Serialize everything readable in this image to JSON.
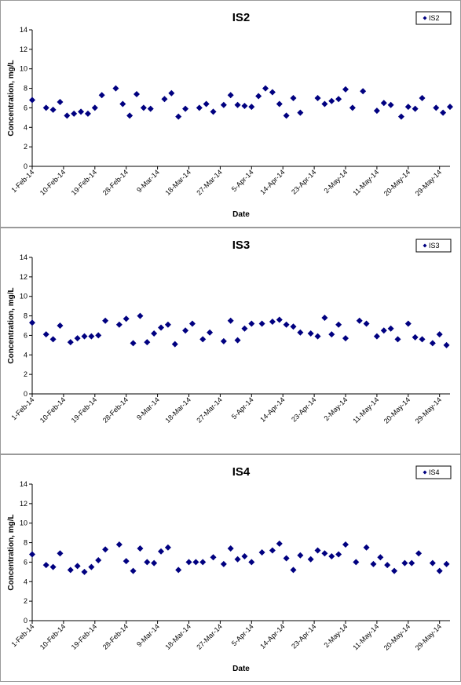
{
  "chart_data": [
    {
      "type": "scatter",
      "title": "IS2",
      "xlabel": "Date",
      "ylabel": "Concentration, mg/L",
      "legend": "top-right",
      "ylim": [
        0,
        14
      ],
      "yticks": [
        "0",
        "2",
        "4",
        "6",
        "8",
        "10",
        "12",
        "14"
      ],
      "xlim": [
        "2014-02-01",
        "2014-06-01"
      ],
      "xtick_labels": [
        "1-Feb-14",
        "10-Feb-14",
        "19-Feb-14",
        "28-Feb-14",
        "9-Mar-14",
        "18-Mar-14",
        "27-Mar-14",
        "5-Apr-14",
        "14-Apr-14",
        "23-Apr-14",
        "2-May-14",
        "11-May-14",
        "20-May-14",
        "29-May-14"
      ],
      "xticks": [
        "2014-02-01",
        "2014-02-10",
        "2014-02-19",
        "2014-02-28",
        "2014-03-09",
        "2014-03-18",
        "2014-03-27",
        "2014-04-05",
        "2014-04-14",
        "2014-04-23",
        "2014-05-02",
        "2014-05-11",
        "2014-05-20",
        "2014-05-29"
      ],
      "series": [
        {
          "name": "IS2",
          "color": "#000080",
          "x": [
            "2014-02-01",
            "2014-02-05",
            "2014-02-07",
            "2014-02-09",
            "2014-02-11",
            "2014-02-13",
            "2014-02-15",
            "2014-02-17",
            "2014-02-19",
            "2014-02-21",
            "2014-02-25",
            "2014-02-27",
            "2014-03-01",
            "2014-03-03",
            "2014-03-05",
            "2014-03-07",
            "2014-03-11",
            "2014-03-13",
            "2014-03-15",
            "2014-03-17",
            "2014-03-21",
            "2014-03-23",
            "2014-03-25",
            "2014-03-28",
            "2014-03-30",
            "2014-04-01",
            "2014-04-03",
            "2014-04-05",
            "2014-04-07",
            "2014-04-09",
            "2014-04-11",
            "2014-04-13",
            "2014-04-15",
            "2014-04-17",
            "2014-04-19",
            "2014-04-24",
            "2014-04-26",
            "2014-04-28",
            "2014-04-30",
            "2014-05-02",
            "2014-05-04",
            "2014-05-07",
            "2014-05-11",
            "2014-05-13",
            "2014-05-15",
            "2014-05-18",
            "2014-05-20",
            "2014-05-22",
            "2014-05-24",
            "2014-05-28",
            "2014-05-30",
            "2014-06-01"
          ],
          "y": [
            6.8,
            6.0,
            5.8,
            6.6,
            5.2,
            5.4,
            5.6,
            5.4,
            6.0,
            7.3,
            8.0,
            6.4,
            5.2,
            7.4,
            6.0,
            5.9,
            6.9,
            7.5,
            5.1,
            5.9,
            6.0,
            6.4,
            5.6,
            6.3,
            7.3,
            6.3,
            6.2,
            6.1,
            7.2,
            8.0,
            7.6,
            6.4,
            5.2,
            7.0,
            5.5,
            7.0,
            6.4,
            6.7,
            6.9,
            7.9,
            6.0,
            7.7,
            5.7,
            6.5,
            6.3,
            5.1,
            6.1,
            5.9,
            7.0,
            6.0,
            5.5,
            6.1
          ]
        }
      ]
    },
    {
      "type": "scatter",
      "title": "IS3",
      "xlabel": "",
      "ylabel": "Concentration, mg/L",
      "legend": "top-right",
      "ylim": [
        0,
        14
      ],
      "yticks": [
        "0",
        "2",
        "4",
        "6",
        "8",
        "10",
        "12",
        "14"
      ],
      "xlim": [
        "2014-02-01",
        "2014-06-01"
      ],
      "xtick_labels": [
        "1-Feb-14",
        "10-Feb-14",
        "19-Feb-14",
        "28-Feb-14",
        "9-Mar-14",
        "18-Mar-14",
        "27-Mar-14",
        "5-Apr-14",
        "14-Apr-14",
        "23-Apr-14",
        "2-May-14",
        "11-May-14",
        "20-May-14",
        "29-May-14"
      ],
      "xticks": [
        "2014-02-01",
        "2014-02-10",
        "2014-02-19",
        "2014-02-28",
        "2014-03-09",
        "2014-03-18",
        "2014-03-27",
        "2014-04-05",
        "2014-04-14",
        "2014-04-23",
        "2014-05-02",
        "2014-05-11",
        "2014-05-20",
        "2014-05-29"
      ],
      "series": [
        {
          "name": "IS3",
          "color": "#000080",
          "x": [
            "2014-02-01",
            "2014-02-05",
            "2014-02-07",
            "2014-02-09",
            "2014-02-12",
            "2014-02-14",
            "2014-02-16",
            "2014-02-18",
            "2014-02-20",
            "2014-02-22",
            "2014-02-26",
            "2014-02-28",
            "2014-03-02",
            "2014-03-04",
            "2014-03-06",
            "2014-03-08",
            "2014-03-10",
            "2014-03-12",
            "2014-03-14",
            "2014-03-17",
            "2014-03-19",
            "2014-03-22",
            "2014-03-24",
            "2014-03-28",
            "2014-03-30",
            "2014-04-01",
            "2014-04-03",
            "2014-04-05",
            "2014-04-08",
            "2014-04-11",
            "2014-04-13",
            "2014-04-15",
            "2014-04-17",
            "2014-04-19",
            "2014-04-22",
            "2014-04-24",
            "2014-04-26",
            "2014-04-28",
            "2014-04-30",
            "2014-05-02",
            "2014-05-06",
            "2014-05-08",
            "2014-05-11",
            "2014-05-13",
            "2014-05-15",
            "2014-05-17",
            "2014-05-20",
            "2014-05-22",
            "2014-05-24",
            "2014-05-27",
            "2014-05-29",
            "2014-05-31"
          ],
          "y": [
            7.3,
            6.1,
            5.6,
            7.0,
            5.3,
            5.7,
            5.9,
            5.9,
            6.0,
            7.5,
            7.1,
            7.7,
            5.2,
            8.0,
            5.3,
            6.2,
            6.8,
            7.1,
            5.1,
            6.5,
            7.2,
            5.6,
            6.3,
            5.4,
            7.5,
            5.5,
            6.7,
            7.2,
            7.2,
            7.4,
            7.6,
            7.1,
            6.9,
            6.3,
            6.2,
            5.9,
            7.8,
            6.1,
            7.1,
            5.7,
            7.5,
            7.2,
            5.9,
            6.5,
            6.7,
            5.6,
            7.2,
            5.8,
            5.6,
            5.2,
            6.1,
            5.0
          ]
        }
      ]
    },
    {
      "type": "scatter",
      "title": "IS4",
      "xlabel": "Date",
      "ylabel": "Concentration, mg/L",
      "legend": "top-right",
      "ylim": [
        0,
        14
      ],
      "yticks": [
        "0",
        "2",
        "4",
        "6",
        "8",
        "10",
        "12",
        "14"
      ],
      "xlim": [
        "2014-02-01",
        "2014-06-01"
      ],
      "xtick_labels": [
        "1-Feb-14",
        "10-Feb-14",
        "19-Feb-14",
        "28-Feb-14",
        "9-Mar-14",
        "18-Mar-14",
        "27-Mar-14",
        "5-Apr-14",
        "14-Apr-14",
        "23-Apr-14",
        "2-May-14",
        "11-May-14",
        "20-May-14",
        "29-May-14"
      ],
      "xticks": [
        "2014-02-01",
        "2014-02-10",
        "2014-02-19",
        "2014-02-28",
        "2014-03-09",
        "2014-03-18",
        "2014-03-27",
        "2014-04-05",
        "2014-04-14",
        "2014-04-23",
        "2014-05-02",
        "2014-05-11",
        "2014-05-20",
        "2014-05-29"
      ],
      "series": [
        {
          "name": "IS4",
          "color": "#000080",
          "x": [
            "2014-02-01",
            "2014-02-05",
            "2014-02-07",
            "2014-02-09",
            "2014-02-12",
            "2014-02-14",
            "2014-02-16",
            "2014-02-18",
            "2014-02-20",
            "2014-02-22",
            "2014-02-26",
            "2014-02-28",
            "2014-03-02",
            "2014-03-04",
            "2014-03-06",
            "2014-03-08",
            "2014-03-10",
            "2014-03-12",
            "2014-03-15",
            "2014-03-18",
            "2014-03-20",
            "2014-03-22",
            "2014-03-25",
            "2014-03-28",
            "2014-03-30",
            "2014-04-01",
            "2014-04-03",
            "2014-04-05",
            "2014-04-08",
            "2014-04-11",
            "2014-04-13",
            "2014-04-15",
            "2014-04-17",
            "2014-04-19",
            "2014-04-22",
            "2014-04-24",
            "2014-04-26",
            "2014-04-28",
            "2014-04-30",
            "2014-05-02",
            "2014-05-05",
            "2014-05-08",
            "2014-05-10",
            "2014-05-12",
            "2014-05-14",
            "2014-05-16",
            "2014-05-19",
            "2014-05-21",
            "2014-05-23",
            "2014-05-27",
            "2014-05-29",
            "2014-05-31"
          ],
          "y": [
            6.8,
            5.7,
            5.5,
            6.9,
            5.2,
            5.6,
            5.0,
            5.5,
            6.2,
            7.3,
            7.8,
            6.1,
            5.1,
            7.4,
            6.0,
            5.9,
            7.1,
            7.5,
            5.2,
            6.0,
            6.0,
            6.0,
            6.5,
            5.8,
            7.4,
            6.3,
            6.6,
            6.0,
            7.0,
            7.2,
            7.9,
            6.4,
            5.2,
            6.7,
            6.3,
            7.2,
            6.9,
            6.6,
            6.8,
            7.8,
            6.0,
            7.5,
            5.8,
            6.5,
            5.7,
            5.1,
            5.9,
            5.9,
            6.9,
            5.9,
            5.1,
            5.8
          ]
        }
      ]
    }
  ]
}
